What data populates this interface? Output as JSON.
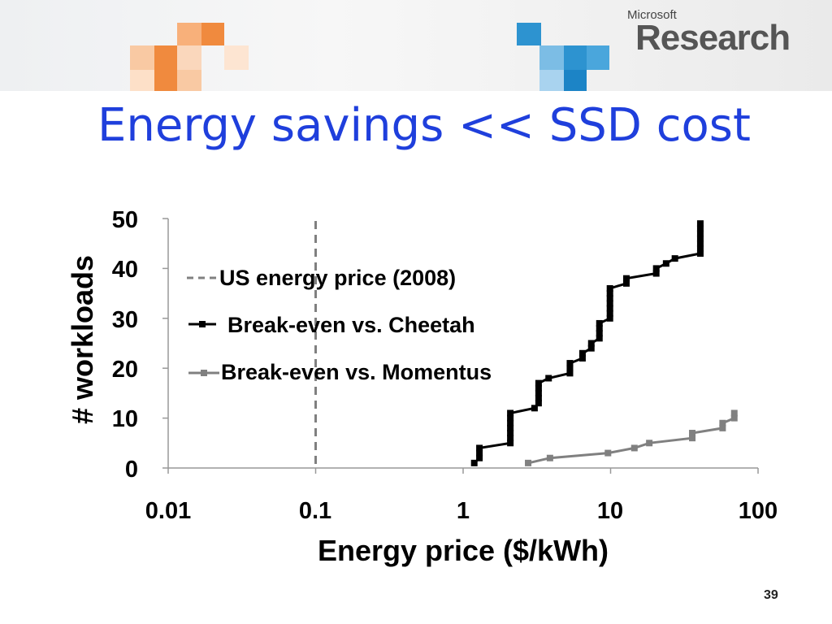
{
  "header": {
    "logo_small": "Microsoft",
    "logo_big": "Research"
  },
  "title": "Energy savings <<  SSD cost",
  "page_number": "39",
  "chart_data": {
    "type": "line",
    "xlabel": "Energy price ($/kWh)",
    "ylabel": "# workloads",
    "xscale": "log",
    "xlim": [
      0.01,
      100
    ],
    "ylim": [
      0,
      50
    ],
    "xticks": [
      "0.01",
      "0.1",
      "1",
      "10",
      "100"
    ],
    "yticks": [
      "0",
      "10",
      "20",
      "30",
      "40",
      "50"
    ],
    "grid": false,
    "legend_position": "top-left",
    "reference_line": {
      "name": "US energy price (2008)",
      "x": 0.1,
      "style": "dashed",
      "color": "#808080"
    },
    "series": [
      {
        "name": "Break-even vs. Cheetah",
        "color": "#000000",
        "x": [
          1.19,
          1.29,
          1.29,
          1.29,
          2.09,
          2.09,
          2.09,
          2.09,
          2.09,
          2.09,
          2.09,
          3.05,
          3.25,
          3.25,
          3.25,
          3.25,
          3.25,
          3.8,
          5.3,
          5.3,
          5.3,
          6.45,
          6.45,
          7.4,
          7.4,
          8.4,
          8.4,
          8.4,
          8.4,
          9.9,
          9.9,
          9.9,
          9.9,
          9.9,
          9.9,
          9.9,
          12.8,
          12.8,
          20.4,
          20.4,
          23.8,
          27.3,
          40.6,
          40.6,
          40.6,
          40.6,
          40.6,
          40.6,
          40.6
        ],
        "y": [
          1,
          2,
          3,
          4,
          5,
          6,
          7,
          8,
          9,
          10,
          11,
          12,
          13,
          14,
          15,
          16,
          17,
          18,
          19,
          20,
          21,
          22,
          23,
          24,
          25,
          26,
          27,
          28,
          29,
          30,
          31,
          32,
          33,
          34,
          35,
          36,
          37,
          38,
          39,
          40,
          41,
          42,
          43,
          44,
          45,
          46,
          47,
          48,
          49
        ]
      },
      {
        "name": "Break-even vs. Momentus",
        "color": "#808080",
        "x": [
          2.76,
          3.88,
          9.6,
          14.5,
          18.3,
          35.8,
          35.8,
          57.5,
          57.5,
          69,
          69
        ],
        "y": [
          1,
          2,
          3,
          4,
          5,
          6,
          7,
          8,
          9,
          10,
          11
        ]
      }
    ]
  }
}
